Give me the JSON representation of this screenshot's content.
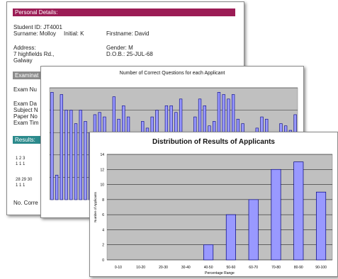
{
  "colors": {
    "section_header": "#9b1c55",
    "section_header_gray": "#8c8c8c",
    "section_header_teal": "#2b8a8c",
    "plot_area": "#c0c0c0",
    "bar_fill": "#9999ff",
    "bar_stroke": "#000080"
  },
  "report": {
    "personal_header": "Personal Details:",
    "student_id": "Student ID: JT4001",
    "surname": "Surname: Molloy",
    "initial": "Initial: K",
    "firstname": "Firstname: David",
    "address_label": "Address:",
    "address_line1": "7 highfields Rd.,",
    "address_line2": "Galway",
    "gender": "Gender: M",
    "dob": "D.O.B.: 25-JUL-68",
    "exam_header": "Examinat",
    "exam_number": "Exam Nu",
    "exam_date": "Exam Da",
    "subject": "Subject N",
    "paper": "Paper No",
    "exam_time": "Exam Tim",
    "results_header": "Results:",
    "row1_nums": "1  2  3",
    "row1_vals": "1  1  1",
    "row2_nums": "28 29 30",
    "row2_vals": "1  1  1",
    "no_correct": "No. Corre"
  },
  "chart_data": [
    {
      "type": "bar",
      "title": "Number of Correct Questions for each Applicant",
      "series": [
        {
          "values": [
            48,
            11,
            47,
            40,
            40,
            34,
            40,
            35,
            30,
            38,
            39,
            37,
            25,
            46,
            36,
            42,
            37,
            10,
            27,
            35,
            32,
            37,
            40,
            29,
            42,
            42,
            39,
            45,
            29,
            27,
            37,
            45,
            42,
            33,
            35,
            48,
            47,
            45,
            47,
            36,
            34,
            29,
            30,
            32,
            37,
            36,
            25,
            30,
            34,
            33,
            31,
            38
          ]
        }
      ]
    },
    {
      "type": "bar",
      "title": "Distribution of Results of Applicants",
      "xlabel": "Percentage Range",
      "ylabel": "Number of Applicants",
      "categories": [
        "0-10",
        "10-20",
        "20-30",
        "30-40",
        "40-50",
        "50-60",
        "60-70",
        "70-80",
        "80-90",
        "90-100"
      ],
      "values": [
        0,
        0,
        0,
        0,
        2,
        6,
        8,
        12,
        13,
        9
      ],
      "ylim": [
        0,
        14
      ],
      "yticks": [
        "0",
        "2",
        "4",
        "6",
        "8",
        "10",
        "12",
        "14"
      ],
      "grid": true
    }
  ]
}
